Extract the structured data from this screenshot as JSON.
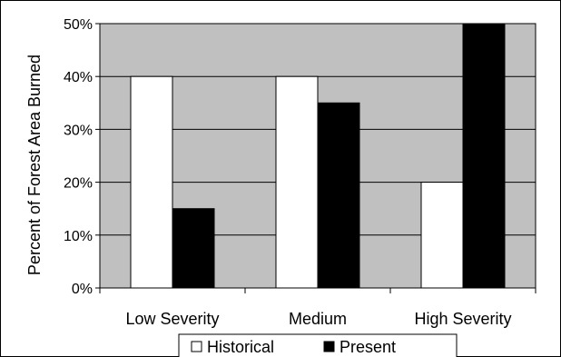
{
  "chart_data": {
    "type": "bar",
    "categories": [
      "Low Severity",
      "Medium",
      "High Severity"
    ],
    "series": [
      {
        "name": "Historical",
        "values": [
          40,
          40,
          20
        ],
        "color": "#ffffff"
      },
      {
        "name": "Present",
        "values": [
          15,
          35,
          50
        ],
        "color": "#000000"
      }
    ],
    "title": "",
    "xlabel": "",
    "ylabel": "Percent of Forest Area Burned",
    "ylim": [
      0,
      50
    ],
    "yticks": [
      "0%",
      "10%",
      "20%",
      "30%",
      "40%",
      "50%"
    ],
    "grid": true,
    "plot_background": "#c0c0c0",
    "legend": {
      "position": "bottom"
    }
  }
}
